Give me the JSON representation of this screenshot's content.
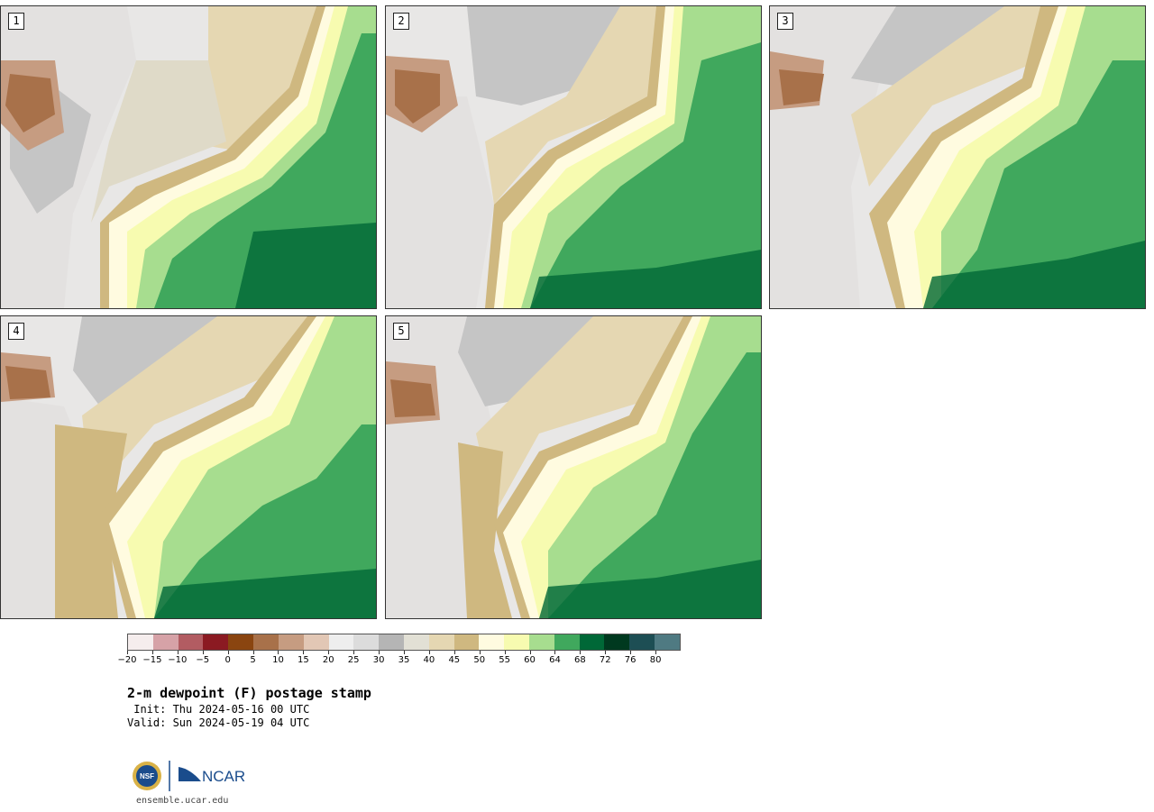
{
  "panels": [
    {
      "label": "1"
    },
    {
      "label": "2"
    },
    {
      "label": "3"
    },
    {
      "label": "4"
    },
    {
      "label": "5"
    }
  ],
  "colorbar": {
    "colors": [
      "#f5eded",
      "#d6a2a7",
      "#b25c62",
      "#8b1a22",
      "#8a4510",
      "#a8714a",
      "#c69c81",
      "#e2c7b5",
      "#eeeeee",
      "#dcdcdc",
      "#b5b5b5",
      "#e2e0d5",
      "#e5d7b2",
      "#cfb880",
      "#fffbe0",
      "#f7fbb0",
      "#a7dd8f",
      "#40a85d",
      "#006837",
      "#00391f",
      "#1d4e54",
      "#4f7a82"
    ],
    "tick_labels": [
      "−20",
      "−15",
      "−10",
      "−5",
      "0",
      "5",
      "10",
      "15",
      "20",
      "25",
      "30",
      "35",
      "40",
      "45",
      "50",
      "55",
      "60",
      "64",
      "68",
      "72",
      "76",
      "80"
    ]
  },
  "title": "2-m dewpoint (F) postage stamp",
  "init_line": " Init: Thu 2024-05-16 00 UTC",
  "valid_line": "Valid: Sun 2024-05-19 04 UTC",
  "logos": {
    "nsf": "NSF",
    "ncar": "NCAR"
  },
  "url": "ensemble.ucar.edu"
}
